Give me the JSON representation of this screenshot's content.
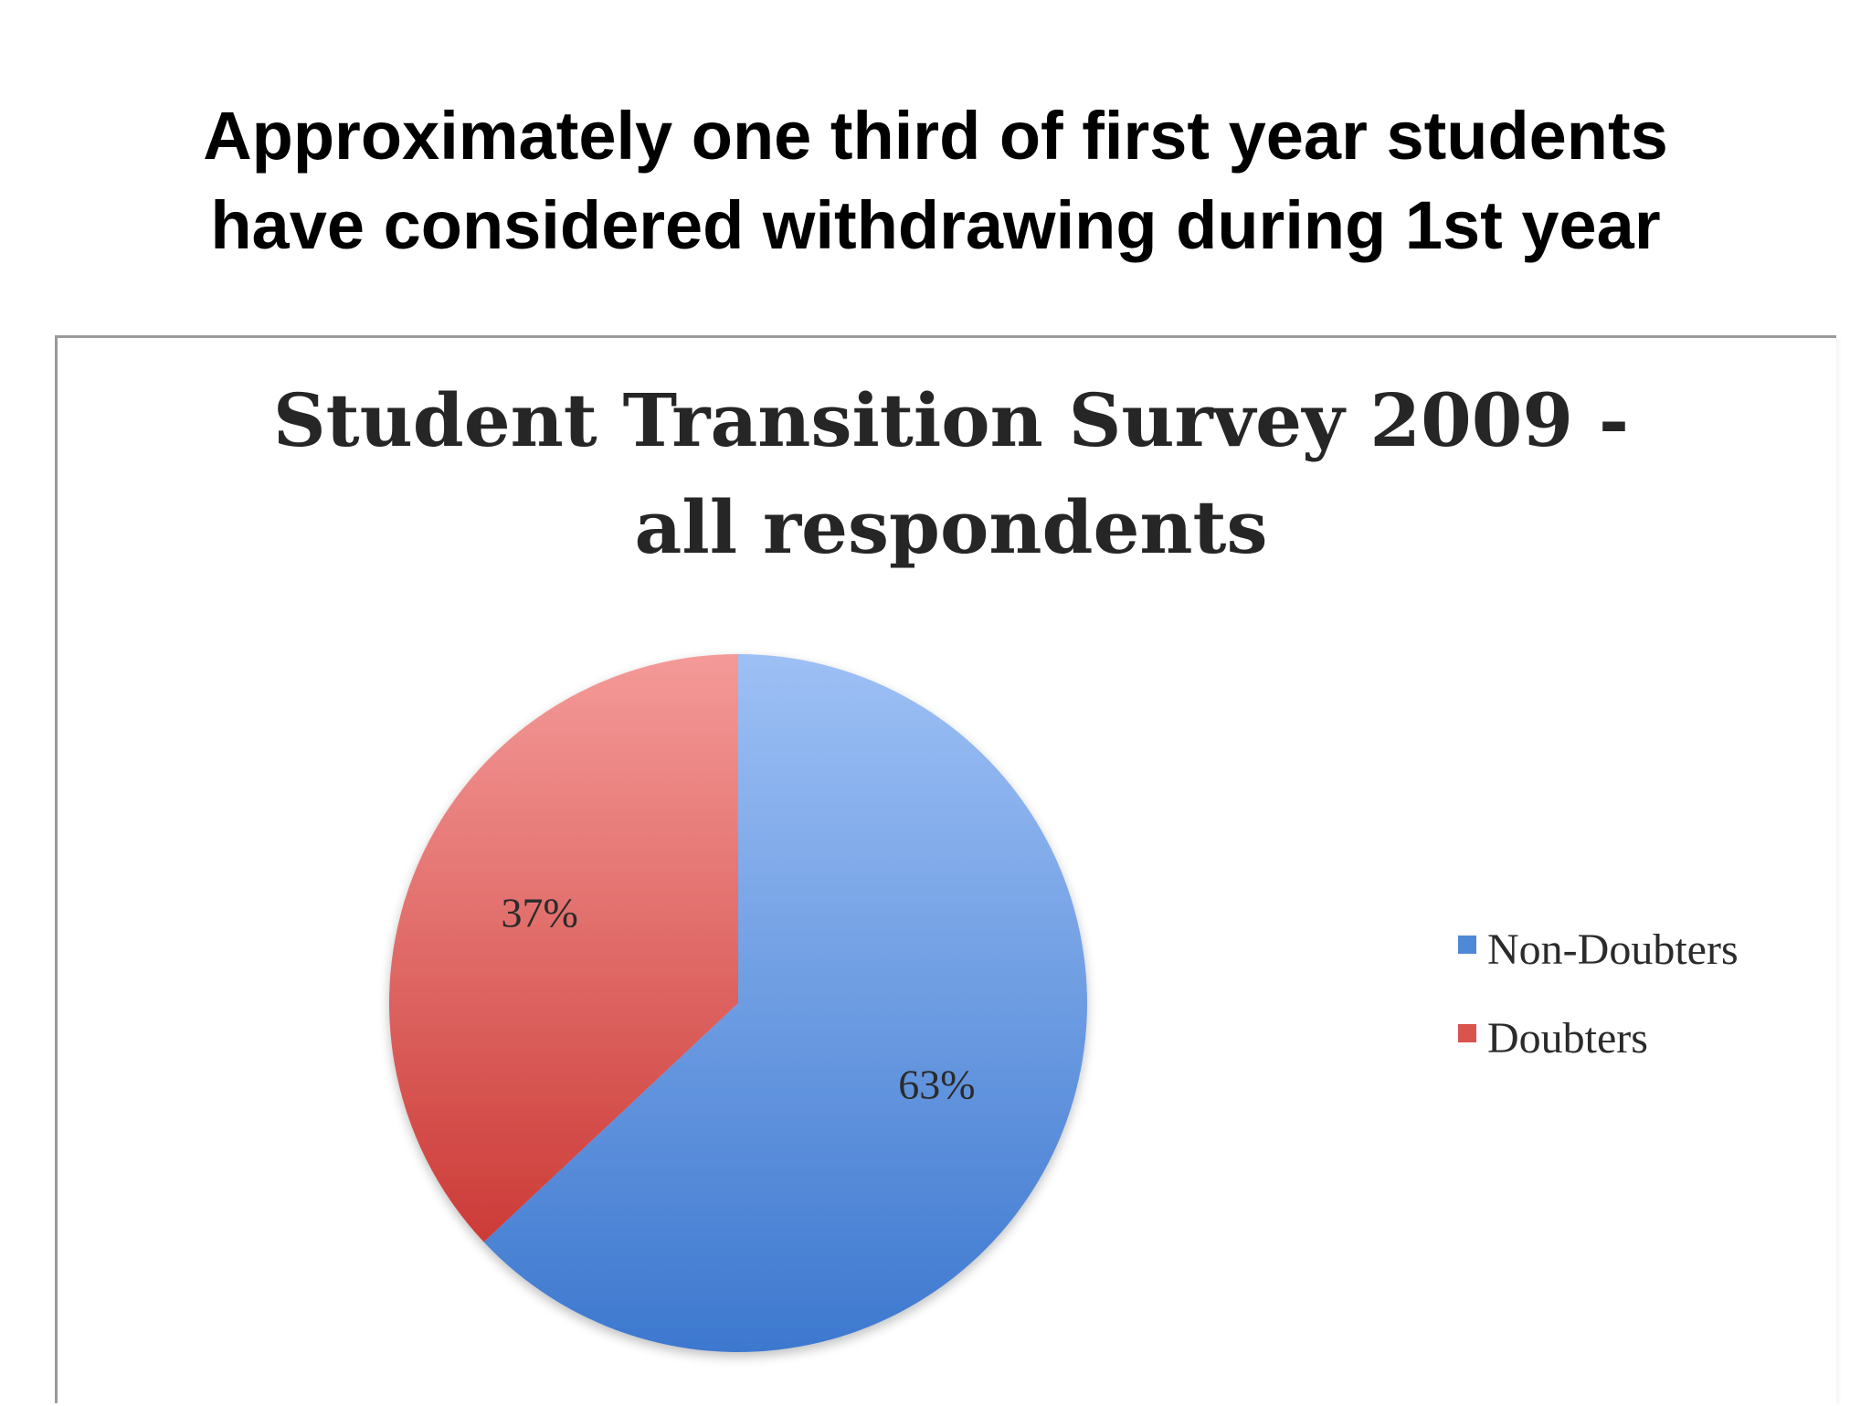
{
  "slide": {
    "title_line_1": "Approximately one third of first year students",
    "title_line_2": "have considered withdrawing during 1st year"
  },
  "chart_data": {
    "type": "pie",
    "title_line_1": "Student Transition Survey 2009 -",
    "title_line_2": "all respondents",
    "legend_position": "right",
    "slices": [
      {
        "name": "Non-Doubters",
        "value": 63,
        "label": "63%",
        "color": "#4f88d6",
        "color_light": "#9dc0f5",
        "color_dark": "#3d78cf"
      },
      {
        "name": "Doubters",
        "value": 37,
        "label": "37%",
        "color": "#d9534f",
        "color_light": "#f49a98",
        "color_dark": "#cc3b37"
      }
    ]
  }
}
